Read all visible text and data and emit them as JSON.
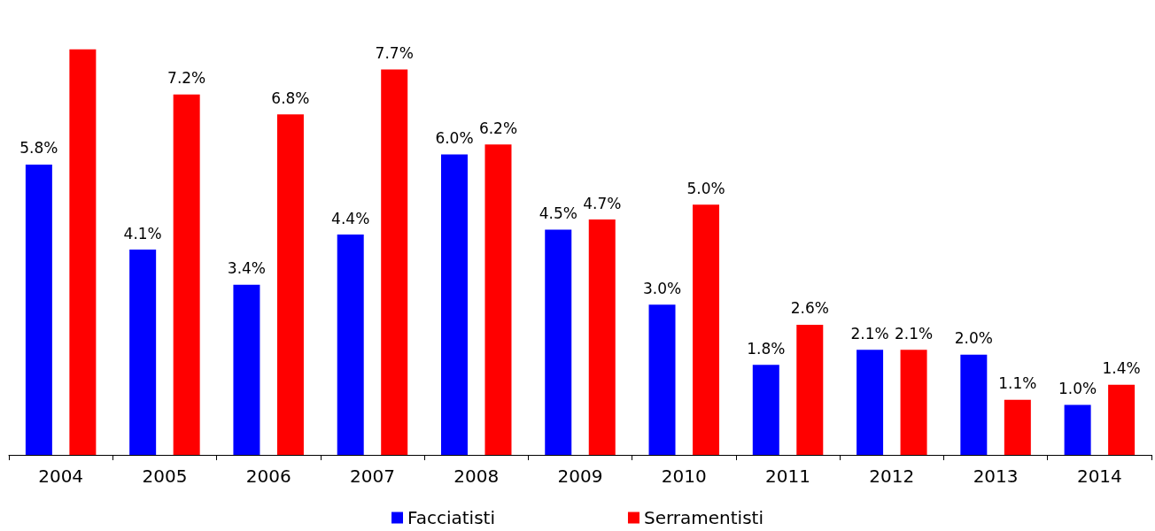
{
  "chart_data": {
    "type": "bar",
    "categories": [
      "2004",
      "2005",
      "2006",
      "2007",
      "2008",
      "2009",
      "2010",
      "2011",
      "2012",
      "2013",
      "2014"
    ],
    "series": [
      {
        "name": "Facciatisti",
        "color": "#0000ff",
        "values": [
          5.8,
          4.1,
          3.4,
          4.4,
          6.0,
          4.5,
          3.0,
          1.8,
          2.1,
          2.0,
          1.0
        ],
        "value_labels": [
          "5.8%",
          "4.1%",
          "3.4%",
          "4.4%",
          "6.0%",
          "4.5%",
          "3.0%",
          "1.8%",
          "2.1%",
          "2.0%",
          "1.0%"
        ]
      },
      {
        "name": "Serramentisti",
        "color": "#ff0000",
        "values": [
          8.1,
          7.2,
          6.8,
          7.7,
          6.2,
          4.7,
          5.0,
          2.6,
          2.1,
          1.1,
          1.4
        ],
        "value_labels": [
          null,
          "7.2%",
          "6.8%",
          "7.7%",
          "6.2%",
          "4.7%",
          "5.0%",
          "2.6%",
          "2.1%",
          "1.1%",
          "1.4%"
        ]
      }
    ],
    "legend": "bottom"
  }
}
